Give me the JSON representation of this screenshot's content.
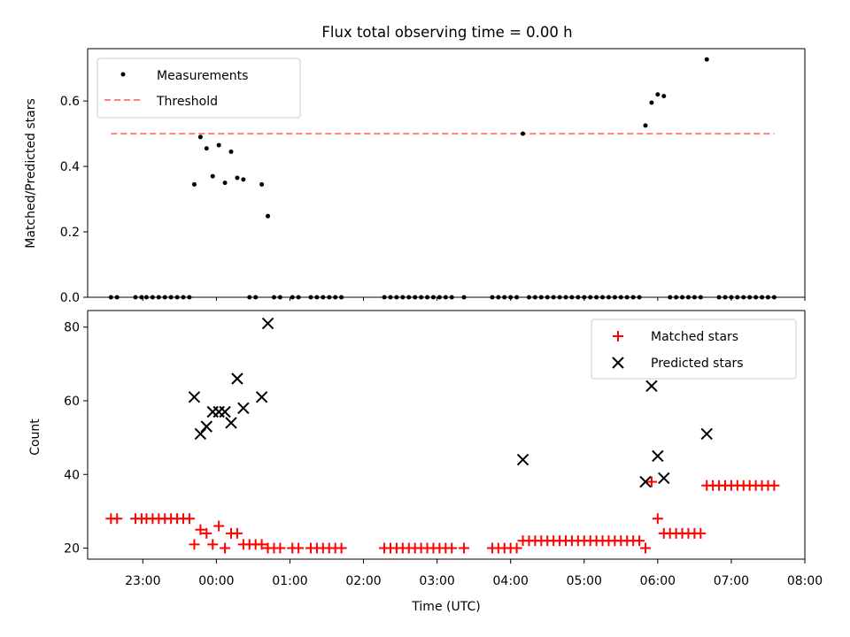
{
  "chart_data": [
    {
      "type": "scatter",
      "title": "Flux total observing time = 0.00 h",
      "ylabel": "Matched/Predicted stars",
      "xlabel": "",
      "ylim": [
        0,
        0.76
      ],
      "yticks": [
        "0.0",
        "0.2",
        "0.4",
        "0.6"
      ],
      "grid": false,
      "legend_position": "top-left",
      "threshold": {
        "name": "Threshold",
        "value": 0.5,
        "x_range": [
          "22:34",
          "07:35"
        ],
        "color": "#ff7f7f"
      },
      "series": [
        {
          "name": "Measurements",
          "marker": "dot",
          "color": "#000000",
          "points": [
            [
              "22:34",
              0
            ],
            [
              "22:39",
              0
            ],
            [
              "22:54",
              0
            ],
            [
              "22:59",
              0
            ],
            [
              "23:03",
              0
            ],
            [
              "23:08",
              0
            ],
            [
              "23:13",
              0
            ],
            [
              "23:18",
              0
            ],
            [
              "23:23",
              0
            ],
            [
              "23:28",
              0
            ],
            [
              "23:33",
              0
            ],
            [
              "23:38",
              0
            ],
            [
              "23:42",
              0.345
            ],
            [
              "23:47",
              0.49
            ],
            [
              "23:52",
              0.455
            ],
            [
              "23:57",
              0.37
            ],
            [
              "00:02",
              0.465
            ],
            [
              "00:07",
              0.35
            ],
            [
              "00:12",
              0.445
            ],
            [
              "00:17",
              0.365
            ],
            [
              "00:22",
              0.36
            ],
            [
              "00:27",
              0
            ],
            [
              "00:32",
              0
            ],
            [
              "00:37",
              0.345
            ],
            [
              "00:42",
              0.248
            ],
            [
              "00:47",
              0
            ],
            [
              "00:52",
              0
            ],
            [
              "01:02",
              0
            ],
            [
              "01:07",
              0
            ],
            [
              "01:17",
              0
            ],
            [
              "01:22",
              0
            ],
            [
              "01:27",
              0
            ],
            [
              "01:32",
              0
            ],
            [
              "01:37",
              0
            ],
            [
              "01:42",
              0
            ],
            [
              "02:17",
              0
            ],
            [
              "02:22",
              0
            ],
            [
              "02:27",
              0
            ],
            [
              "02:32",
              0
            ],
            [
              "02:37",
              0
            ],
            [
              "02:42",
              0
            ],
            [
              "02:47",
              0
            ],
            [
              "02:52",
              0
            ],
            [
              "02:57",
              0
            ],
            [
              "03:02",
              0
            ],
            [
              "03:07",
              0
            ],
            [
              "03:12",
              0
            ],
            [
              "03:22",
              0
            ],
            [
              "03:45",
              0
            ],
            [
              "03:50",
              0
            ],
            [
              "03:55",
              0
            ],
            [
              "04:00",
              0
            ],
            [
              "04:05",
              0
            ],
            [
              "04:10",
              0.5
            ],
            [
              "04:15",
              0
            ],
            [
              "04:20",
              0
            ],
            [
              "04:25",
              0
            ],
            [
              "04:30",
              0
            ],
            [
              "04:35",
              0
            ],
            [
              "04:40",
              0
            ],
            [
              "04:45",
              0
            ],
            [
              "04:50",
              0
            ],
            [
              "04:55",
              0
            ],
            [
              "05:00",
              0
            ],
            [
              "05:05",
              0
            ],
            [
              "05:10",
              0
            ],
            [
              "05:15",
              0
            ],
            [
              "05:20",
              0
            ],
            [
              "05:25",
              0
            ],
            [
              "05:30",
              0
            ],
            [
              "05:35",
              0
            ],
            [
              "05:40",
              0
            ],
            [
              "05:45",
              0
            ],
            [
              "05:50",
              0.525
            ],
            [
              "05:55",
              0.595
            ],
            [
              "06:00",
              0.62
            ],
            [
              "06:05",
              0.615
            ],
            [
              "06:10",
              0
            ],
            [
              "06:15",
              0
            ],
            [
              "06:20",
              0
            ],
            [
              "06:25",
              0
            ],
            [
              "06:30",
              0
            ],
            [
              "06:35",
              0
            ],
            [
              "06:40",
              0.727
            ],
            [
              "06:50",
              0
            ],
            [
              "06:55",
              0
            ],
            [
              "07:00",
              0
            ],
            [
              "07:05",
              0
            ],
            [
              "07:10",
              0
            ],
            [
              "07:15",
              0
            ],
            [
              "07:20",
              0
            ],
            [
              "07:25",
              0
            ],
            [
              "07:30",
              0
            ],
            [
              "07:35",
              0
            ]
          ]
        }
      ]
    },
    {
      "type": "scatter",
      "title": "",
      "xlabel": "Time (UTC)",
      "ylabel": "Count",
      "ylim": [
        17,
        84.5
      ],
      "yticks": [
        "20",
        "40",
        "60",
        "80"
      ],
      "xlim": [
        "22:15",
        "08:00"
      ],
      "xticks": [
        "23:00",
        "00:00",
        "01:00",
        "02:00",
        "03:00",
        "04:00",
        "05:00",
        "06:00",
        "07:00",
        "08:00"
      ],
      "grid": false,
      "legend_position": "top-right",
      "series": [
        {
          "name": "Matched stars",
          "marker": "plus",
          "color": "#ff0000",
          "points": [
            [
              "22:34",
              28
            ],
            [
              "22:39",
              28
            ],
            [
              "22:54",
              28
            ],
            [
              "22:59",
              28
            ],
            [
              "23:03",
              28
            ],
            [
              "23:08",
              28
            ],
            [
              "23:13",
              28
            ],
            [
              "23:18",
              28
            ],
            [
              "23:23",
              28
            ],
            [
              "23:28",
              28
            ],
            [
              "23:33",
              28
            ],
            [
              "23:38",
              28
            ],
            [
              "23:42",
              21
            ],
            [
              "23:47",
              25
            ],
            [
              "23:52",
              24
            ],
            [
              "23:57",
              21
            ],
            [
              "00:02",
              26
            ],
            [
              "00:07",
              20
            ],
            [
              "00:12",
              24
            ],
            [
              "00:17",
              24
            ],
            [
              "00:22",
              21
            ],
            [
              "00:27",
              21
            ],
            [
              "00:32",
              21
            ],
            [
              "00:37",
              21
            ],
            [
              "00:42",
              20
            ],
            [
              "00:47",
              20
            ],
            [
              "00:52",
              20
            ],
            [
              "01:02",
              20
            ],
            [
              "01:07",
              20
            ],
            [
              "01:17",
              20
            ],
            [
              "01:22",
              20
            ],
            [
              "01:27",
              20
            ],
            [
              "01:32",
              20
            ],
            [
              "01:37",
              20
            ],
            [
              "01:42",
              20
            ],
            [
              "02:17",
              20
            ],
            [
              "02:22",
              20
            ],
            [
              "02:27",
              20
            ],
            [
              "02:32",
              20
            ],
            [
              "02:37",
              20
            ],
            [
              "02:42",
              20
            ],
            [
              "02:47",
              20
            ],
            [
              "02:52",
              20
            ],
            [
              "02:57",
              20
            ],
            [
              "03:02",
              20
            ],
            [
              "03:07",
              20
            ],
            [
              "03:12",
              20
            ],
            [
              "03:22",
              20
            ],
            [
              "03:45",
              20
            ],
            [
              "03:50",
              20
            ],
            [
              "03:55",
              20
            ],
            [
              "04:00",
              20
            ],
            [
              "04:05",
              20
            ],
            [
              "04:10",
              22
            ],
            [
              "04:15",
              22
            ],
            [
              "04:20",
              22
            ],
            [
              "04:25",
              22
            ],
            [
              "04:30",
              22
            ],
            [
              "04:35",
              22
            ],
            [
              "04:40",
              22
            ],
            [
              "04:45",
              22
            ],
            [
              "04:50",
              22
            ],
            [
              "04:55",
              22
            ],
            [
              "05:00",
              22
            ],
            [
              "05:05",
              22
            ],
            [
              "05:10",
              22
            ],
            [
              "05:15",
              22
            ],
            [
              "05:20",
              22
            ],
            [
              "05:25",
              22
            ],
            [
              "05:30",
              22
            ],
            [
              "05:35",
              22
            ],
            [
              "05:40",
              22
            ],
            [
              "05:45",
              22
            ],
            [
              "05:50",
              20
            ],
            [
              "05:55",
              38
            ],
            [
              "06:00",
              28
            ],
            [
              "06:05",
              24
            ],
            [
              "06:10",
              24
            ],
            [
              "06:15",
              24
            ],
            [
              "06:20",
              24
            ],
            [
              "06:25",
              24
            ],
            [
              "06:30",
              24
            ],
            [
              "06:35",
              24
            ],
            [
              "06:40",
              37
            ],
            [
              "06:45",
              37
            ],
            [
              "06:50",
              37
            ],
            [
              "06:55",
              37
            ],
            [
              "07:00",
              37
            ],
            [
              "07:05",
              37
            ],
            [
              "07:10",
              37
            ],
            [
              "07:15",
              37
            ],
            [
              "07:20",
              37
            ],
            [
              "07:25",
              37
            ],
            [
              "07:30",
              37
            ],
            [
              "07:35",
              37
            ]
          ]
        },
        {
          "name": "Predicted stars",
          "marker": "x",
          "color": "#000000",
          "points": [
            [
              "23:42",
              61
            ],
            [
              "23:47",
              51
            ],
            [
              "23:52",
              53
            ],
            [
              "23:57",
              57
            ],
            [
              "00:02",
              57
            ],
            [
              "00:07",
              57
            ],
            [
              "00:12",
              54
            ],
            [
              "00:17",
              66
            ],
            [
              "00:22",
              58
            ],
            [
              "00:37",
              61
            ],
            [
              "00:42",
              81
            ],
            [
              "04:10",
              44
            ],
            [
              "05:50",
              38
            ],
            [
              "05:55",
              64
            ],
            [
              "06:00",
              45
            ],
            [
              "06:05",
              39
            ],
            [
              "06:40",
              51
            ]
          ]
        }
      ]
    }
  ]
}
